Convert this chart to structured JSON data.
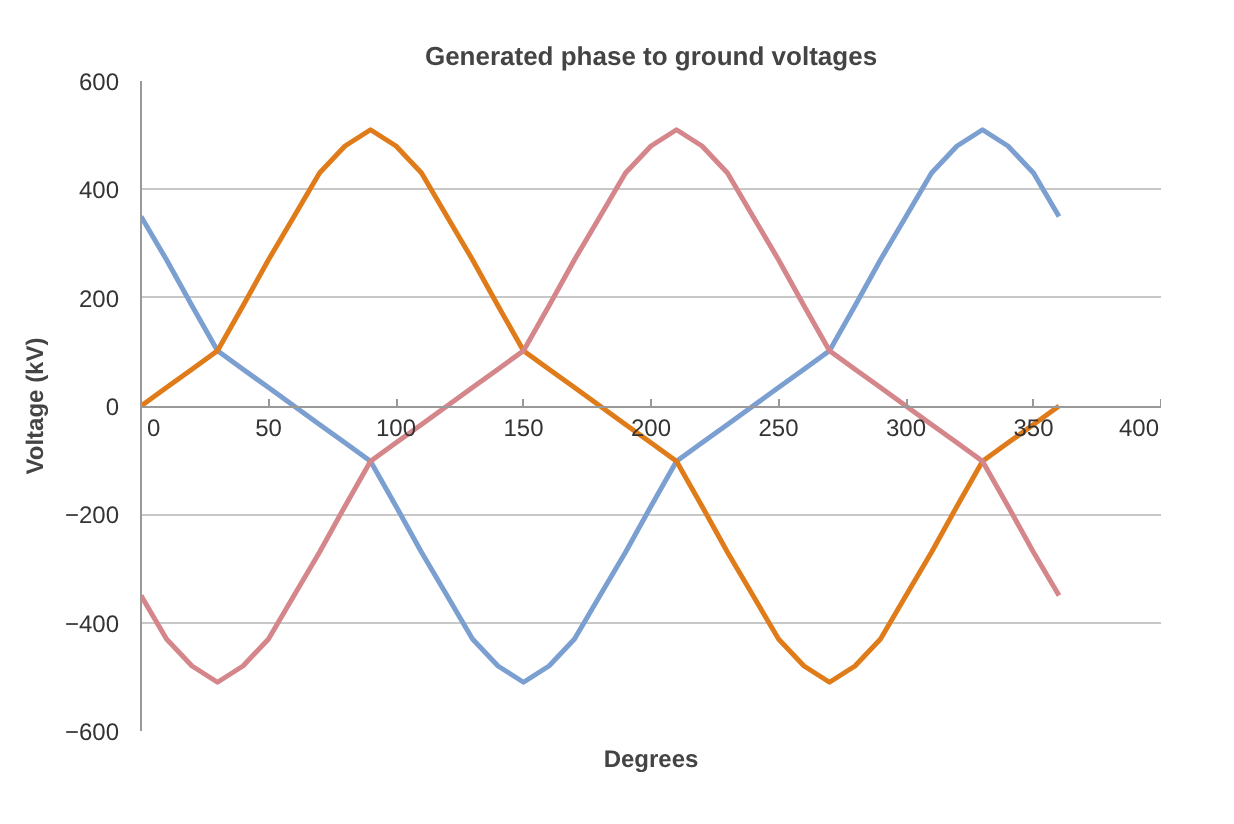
{
  "chart_data": {
    "type": "line",
    "title": "Generated phase to ground voltages",
    "xlabel": "Degrees",
    "ylabel": "Voltage (kV)",
    "x": [
      0,
      10,
      20,
      30,
      40,
      50,
      60,
      70,
      80,
      90,
      100,
      110,
      120,
      130,
      140,
      150,
      160,
      170,
      180,
      190,
      200,
      210,
      220,
      230,
      240,
      250,
      260,
      270,
      280,
      290,
      300,
      310,
      320,
      330,
      340,
      350,
      360
    ],
    "series": [
      {
        "color": "#7b9fd0",
        "values": [
          350,
          270,
          185,
          102,
          68,
          34,
          0,
          -34,
          -68,
          -102,
          -185,
          -270,
          -350,
          -430,
          -480,
          -510,
          -480,
          -430,
          -350,
          -270,
          -185,
          -102,
          -68,
          -34,
          0,
          34,
          68,
          102,
          185,
          270,
          350,
          430,
          480,
          510,
          480,
          430,
          350
        ]
      },
      {
        "color": "#e07b1a",
        "values": [
          0,
          34,
          68,
          102,
          185,
          270,
          350,
          430,
          480,
          510,
          480,
          430,
          350,
          270,
          185,
          102,
          68,
          34,
          0,
          -34,
          -68,
          -102,
          -185,
          -270,
          -350,
          -430,
          -480,
          -510,
          -480,
          -430,
          -350,
          -270,
          -185,
          -102,
          -68,
          -34,
          0
        ]
      },
      {
        "color": "#d4868a",
        "values": [
          -350,
          -430,
          -480,
          -510,
          -480,
          -430,
          -350,
          -270,
          -185,
          -102,
          -68,
          -34,
          0,
          34,
          68,
          102,
          185,
          270,
          350,
          430,
          480,
          510,
          480,
          430,
          350,
          270,
          185,
          102,
          68,
          34,
          0,
          -34,
          -68,
          -102,
          -185,
          -270,
          -350
        ]
      }
    ],
    "xlim": [
      0,
      400
    ],
    "xticks": [
      0,
      50,
      100,
      150,
      200,
      250,
      300,
      350,
      400
    ],
    "ylim": [
      -600,
      600
    ],
    "yticks": [
      -600,
      -400,
      -200,
      0,
      200,
      400,
      600
    ],
    "grid": "y"
  }
}
